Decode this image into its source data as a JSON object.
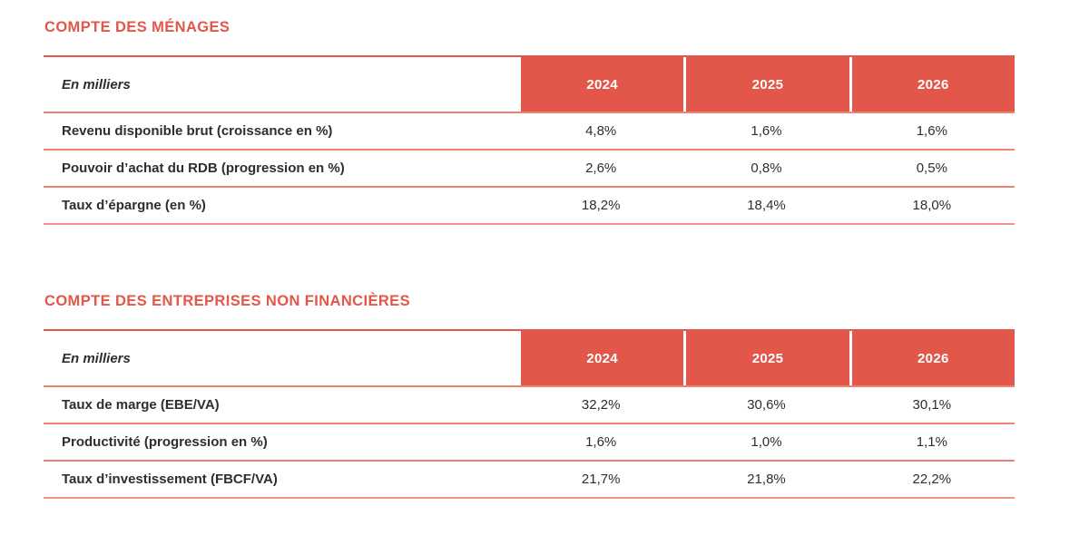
{
  "colors": {
    "accent": "#e2574a",
    "row_line": "#ee8170",
    "header_text": "#ffffff",
    "body_text": "#2e2d33",
    "background": "#ffffff"
  },
  "years": [
    "2024",
    "2025",
    "2026"
  ],
  "sections": [
    {
      "title": "COMPTE DES MÉNAGES",
      "unit_label": "En milliers",
      "rows": [
        {
          "label": "Revenu disponible brut (croissance en %)",
          "values": [
            "4,8%",
            "1,6%",
            "1,6%"
          ]
        },
        {
          "label": "Pouvoir d’achat du RDB (progression en %)",
          "values": [
            "2,6%",
            "0,8%",
            "0,5%"
          ]
        },
        {
          "label": "Taux d’épargne (en %)",
          "values": [
            "18,2%",
            "18,4%",
            "18,0%"
          ]
        }
      ]
    },
    {
      "title": "COMPTE DES ENTREPRISES NON FINANCIÈRES",
      "unit_label": "En milliers",
      "rows": [
        {
          "label": "Taux de marge (EBE/VA)",
          "values": [
            "32,2%",
            "30,6%",
            "30,1%"
          ]
        },
        {
          "label": "Productivité (progression en %)",
          "values": [
            "1,6%",
            "1,0%",
            "1,1%"
          ]
        },
        {
          "label": "Taux d’investissement (FBCF/VA)",
          "values": [
            "21,7%",
            "21,8%",
            "22,2%"
          ]
        }
      ]
    }
  ]
}
